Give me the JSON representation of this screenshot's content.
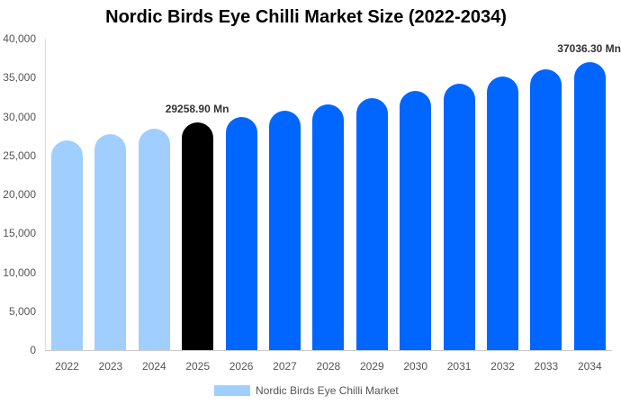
{
  "chart_data": {
    "type": "bar",
    "title": "Nordic Birds Eye Chilli Market Size (2022-2034)",
    "xlabel": "",
    "ylabel": "",
    "ylim": [
      0,
      40000
    ],
    "yticks": [
      "0",
      "5,000",
      "10,000",
      "15,000",
      "20,000",
      "25,000",
      "30,000",
      "35,000",
      "40,000"
    ],
    "categories": [
      "2022",
      "2023",
      "2024",
      "2025",
      "2026",
      "2027",
      "2028",
      "2029",
      "2030",
      "2031",
      "2032",
      "2033",
      "2034"
    ],
    "series": [
      {
        "name": "Nordic Birds Eye Chilli Market",
        "values": [
          26940,
          27690,
          28440,
          29258.9,
          29940,
          30750,
          31560,
          32370,
          33290,
          34190,
          35110,
          36060,
          37036.3
        ]
      }
    ],
    "bar_colors": [
      "#a0cfff",
      "#a0cfff",
      "#a0cfff",
      "#000000",
      "#0066ff",
      "#0066ff",
      "#0066ff",
      "#0066ff",
      "#0066ff",
      "#0066ff",
      "#0066ff",
      "#0066ff",
      "#0066ff"
    ],
    "annotations": [
      {
        "index": 3,
        "text": "29258.90 Mn"
      },
      {
        "index": 12,
        "text": "37036.30 Mn"
      }
    ],
    "legend": {
      "label": "Nordic Birds Eye Chilli Market",
      "position": "bottom",
      "color": "#a0cfff"
    },
    "grid": false
  }
}
